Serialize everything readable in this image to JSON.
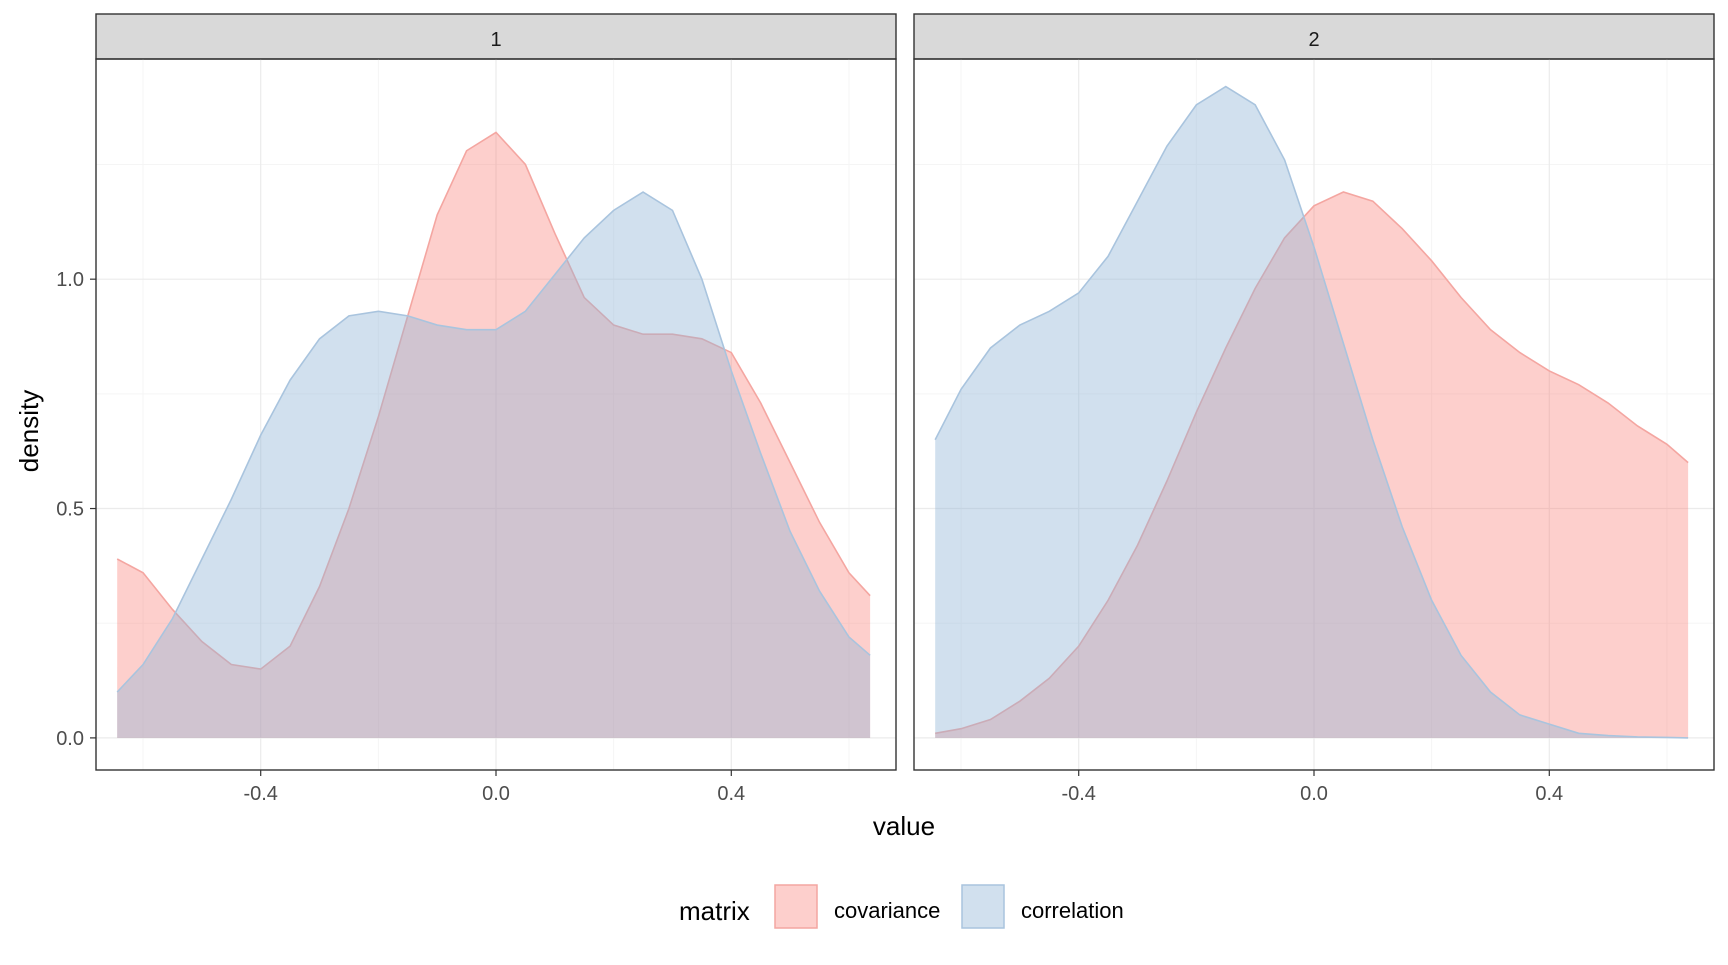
{
  "chart_data": {
    "type": "area",
    "facets": [
      {
        "label": "1",
        "series": [
          {
            "name": "covariance",
            "x": [
              -0.644,
              -0.6,
              -0.55,
              -0.5,
              -0.45,
              -0.4,
              -0.35,
              -0.3,
              -0.25,
              -0.2,
              -0.15,
              -0.1,
              -0.05,
              0.0,
              0.05,
              0.1,
              0.15,
              0.2,
              0.25,
              0.3,
              0.35,
              0.4,
              0.45,
              0.5,
              0.55,
              0.6,
              0.636
            ],
            "y": [
              0.39,
              0.36,
              0.28,
              0.21,
              0.16,
              0.15,
              0.2,
              0.33,
              0.5,
              0.7,
              0.92,
              1.14,
              1.28,
              1.32,
              1.25,
              1.1,
              0.96,
              0.9,
              0.88,
              0.88,
              0.87,
              0.84,
              0.73,
              0.6,
              0.47,
              0.36,
              0.31
            ]
          },
          {
            "name": "correlation",
            "x": [
              -0.644,
              -0.6,
              -0.55,
              -0.5,
              -0.45,
              -0.4,
              -0.35,
              -0.3,
              -0.25,
              -0.2,
              -0.15,
              -0.1,
              -0.05,
              0.0,
              0.05,
              0.1,
              0.15,
              0.2,
              0.25,
              0.3,
              0.35,
              0.4,
              0.45,
              0.5,
              0.55,
              0.6,
              0.636
            ],
            "y": [
              0.1,
              0.16,
              0.26,
              0.39,
              0.52,
              0.66,
              0.78,
              0.87,
              0.92,
              0.93,
              0.92,
              0.9,
              0.89,
              0.89,
              0.93,
              1.01,
              1.09,
              1.15,
              1.19,
              1.15,
              1.0,
              0.8,
              0.62,
              0.45,
              0.32,
              0.22,
              0.18
            ]
          }
        ]
      },
      {
        "label": "2",
        "series": [
          {
            "name": "covariance",
            "x": [
              -0.644,
              -0.6,
              -0.55,
              -0.5,
              -0.45,
              -0.4,
              -0.35,
              -0.3,
              -0.25,
              -0.2,
              -0.15,
              -0.1,
              -0.05,
              0.0,
              0.05,
              0.1,
              0.15,
              0.2,
              0.25,
              0.3,
              0.35,
              0.4,
              0.45,
              0.5,
              0.55,
              0.6,
              0.636
            ],
            "y": [
              0.01,
              0.02,
              0.04,
              0.08,
              0.13,
              0.2,
              0.3,
              0.42,
              0.56,
              0.71,
              0.85,
              0.98,
              1.09,
              1.16,
              1.19,
              1.17,
              1.11,
              1.04,
              0.96,
              0.89,
              0.84,
              0.8,
              0.77,
              0.73,
              0.68,
              0.64,
              0.6
            ]
          },
          {
            "name": "correlation",
            "x": [
              -0.644,
              -0.6,
              -0.55,
              -0.5,
              -0.45,
              -0.4,
              -0.35,
              -0.3,
              -0.25,
              -0.2,
              -0.15,
              -0.1,
              -0.05,
              0.0,
              0.05,
              0.1,
              0.15,
              0.2,
              0.25,
              0.3,
              0.35,
              0.4,
              0.45,
              0.5,
              0.55,
              0.6,
              0.636
            ],
            "y": [
              0.65,
              0.76,
              0.85,
              0.9,
              0.93,
              0.97,
              1.05,
              1.17,
              1.29,
              1.38,
              1.42,
              1.38,
              1.26,
              1.07,
              0.86,
              0.65,
              0.46,
              0.3,
              0.18,
              0.1,
              0.05,
              0.03,
              0.01,
              0.005,
              0.002,
              0.001,
              0.0
            ]
          }
        ]
      }
    ],
    "xlabel": "value",
    "ylabel": "density",
    "xlim": [
      -0.68,
      0.68
    ],
    "ylim": [
      -0.07,
      1.48
    ],
    "xticks": [
      -0.4,
      0.0,
      0.4
    ],
    "xtick_labels": [
      "-0.4",
      "0.0",
      "0.4"
    ],
    "yticks": [
      0.0,
      0.5,
      1.0
    ],
    "ytick_labels": [
      "0.0",
      "0.5",
      "1.0"
    ],
    "grid": true,
    "legend": {
      "title": "matrix",
      "position": "bottom",
      "entries": [
        "covariance",
        "correlation"
      ]
    },
    "colors": {
      "covariance": {
        "fill": "#F8766D",
        "fill_opacity": 0.35,
        "line": "#F4A6A1"
      },
      "correlation": {
        "fill": "#91B5D6",
        "fill_opacity": 0.42,
        "line": "#A9C4DE"
      },
      "strip": "#D9D9D9",
      "grid_major": "#EBEBEB",
      "grid_minor": "#F5F5F5",
      "panel_border": "#333333"
    }
  }
}
